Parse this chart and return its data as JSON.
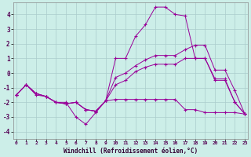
{
  "background_color": "#cceee8",
  "grid_color": "#aacccc",
  "line_color": "#990099",
  "x_label": "Windchill (Refroidissement éolien,°C)",
  "x_ticks": [
    0,
    1,
    2,
    3,
    4,
    5,
    6,
    7,
    8,
    9,
    10,
    11,
    12,
    13,
    14,
    15,
    16,
    17,
    18,
    19,
    20,
    21,
    22,
    23
  ],
  "y_ticks": [
    -4,
    -3,
    -2,
    -1,
    0,
    1,
    2,
    3,
    4
  ],
  "ylim": [
    -4.5,
    4.8
  ],
  "xlim": [
    -0.3,
    23.3
  ],
  "series1_x": [
    0,
    1,
    2,
    3,
    4,
    5,
    6,
    7,
    8,
    9,
    10,
    11,
    12,
    13,
    14,
    15,
    16,
    17,
    18,
    19,
    20,
    21,
    22,
    23
  ],
  "series1_y": [
    -1.5,
    -0.8,
    -1.5,
    -1.6,
    -2.0,
    -2.0,
    -3.0,
    -3.5,
    -2.7,
    -1.9,
    -1.8,
    -1.8,
    -1.8,
    -1.8,
    -1.8,
    -1.8,
    -1.8,
    -2.5,
    -2.5,
    -2.7,
    -2.7,
    -2.7,
    -2.7,
    -2.8
  ],
  "series2_x": [
    0,
    1,
    2,
    3,
    4,
    5,
    6,
    7,
    8,
    9,
    10,
    11,
    12,
    13,
    14,
    15,
    16,
    17,
    18,
    19,
    20,
    21,
    22,
    23
  ],
  "series2_y": [
    -1.5,
    -0.8,
    -1.4,
    -1.6,
    -2.0,
    -2.1,
    -2.0,
    -2.5,
    -2.6,
    -1.9,
    1.0,
    1.0,
    2.5,
    3.3,
    4.5,
    4.5,
    4.0,
    3.9,
    1.0,
    1.0,
    -0.5,
    -0.5,
    -2.0,
    -2.8
  ],
  "series3_x": [
    0,
    1,
    2,
    3,
    4,
    5,
    6,
    7,
    8,
    9,
    10,
    11,
    12,
    13,
    14,
    15,
    16,
    17,
    18,
    19,
    20,
    21,
    22,
    23
  ],
  "series3_y": [
    -1.5,
    -0.8,
    -1.4,
    -1.6,
    -2.0,
    -2.1,
    -2.0,
    -2.5,
    -2.6,
    -1.9,
    -0.8,
    -0.5,
    0.1,
    0.4,
    0.6,
    0.6,
    0.6,
    1.0,
    1.0,
    1.0,
    -0.4,
    -0.4,
    -2.0,
    -2.8
  ],
  "series4_x": [
    0,
    1,
    2,
    3,
    4,
    5,
    6,
    7,
    8,
    9,
    10,
    11,
    12,
    13,
    14,
    15,
    16,
    17,
    18,
    19,
    20,
    21,
    22,
    23
  ],
  "series4_y": [
    -1.5,
    -0.8,
    -1.4,
    -1.6,
    -2.0,
    -2.1,
    -2.0,
    -2.5,
    -2.6,
    -1.9,
    -0.3,
    0.0,
    0.5,
    0.9,
    1.2,
    1.2,
    1.2,
    1.6,
    1.9,
    1.9,
    0.2,
    0.2,
    -1.2,
    -2.8
  ]
}
